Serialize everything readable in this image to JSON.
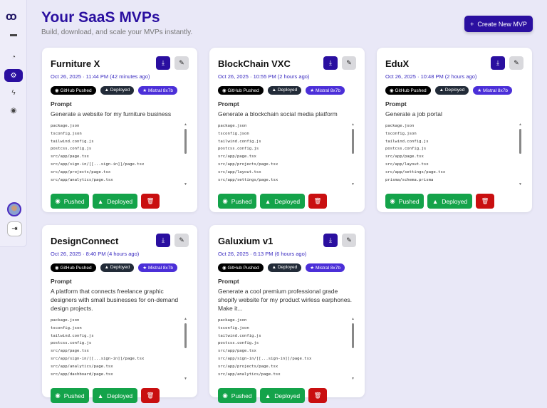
{
  "sidebar": {
    "logo": "co",
    "items": [
      {
        "name": "card",
        "icon": "▬"
      },
      {
        "name": "dashboard",
        "icon": "◔"
      },
      {
        "name": "mvps",
        "icon": "⚙"
      },
      {
        "name": "flash",
        "icon": "ϟ"
      },
      {
        "name": "gamepad",
        "icon": "◉"
      }
    ],
    "active": "mvps",
    "logout_icon": "⇥"
  },
  "header": {
    "title": "Your SaaS MVPs",
    "subtitle": "Build, download, and scale your MVPs instantly.",
    "new_button": "Create New MVP"
  },
  "badges": {
    "github": "GitHub Pushed",
    "deployed": "Deployed",
    "model": "Mistral 8x7b"
  },
  "labels": {
    "prompt": "Prompt",
    "pushed": "Pushed",
    "deployed": "Deployed"
  },
  "colors": {
    "accent": "#2a0fa0",
    "success": "#14a34a",
    "danger": "#c90f10",
    "model": "#4b2fd8"
  },
  "cards": [
    {
      "title": "Furniture X",
      "date": "Oct 26, 2025 · 11:44 PM  (42 minutes ago)",
      "prompt": "Generate a website for my furniture business",
      "files": [
        "package.json",
        "tsconfig.json",
        "tailwind.config.js",
        "postcss.config.js",
        "src/app/page.tsx",
        "src/app/sign-in/[[...sign-in]]/page.tsx",
        "src/app/projects/page.tsx",
        "src/app/analytics/page.tsx"
      ]
    },
    {
      "title": "BlockChain VXC",
      "date": "Oct 26, 2025 · 10:55 PM  (2 hours ago)",
      "prompt": "Generate a blockchain social media platform",
      "files": [
        "package.json",
        "tsconfig.json",
        "tailwind.config.js",
        "postcss.config.js",
        "src/app/page.tsx",
        "src/app/projects/page.tsx",
        "src/app/layout.tsx",
        "src/app/settings/page.tsx"
      ]
    },
    {
      "title": "EduX",
      "date": "Oct 26, 2025 · 10:48 PM  (2 hours ago)",
      "prompt": "Generate a job portal",
      "files": [
        "package.json",
        "tsconfig.json",
        "tailwind.config.js",
        "postcss.config.js",
        "src/app/page.tsx",
        "src/app/layout.tsx",
        "src/app/settings/page.tsx",
        "prisma/schema.prisma"
      ]
    },
    {
      "title": "DesignConnect",
      "date": "Oct 26, 2025 · 8:40 PM  (4 hours ago)",
      "prompt": "A platform that connects freelance graphic designers with small businesses for on-demand design projects.",
      "files": [
        "package.json",
        "tsconfig.json",
        "tailwind.config.js",
        "postcss.config.js",
        "src/app/page.tsx",
        "src/app/sign-in/[[...sign-in]]/page.tsx",
        "src/app/analytics/page.tsx",
        "src/app/dashboard/page.tsx"
      ]
    },
    {
      "title": "Galuxium v1",
      "date": "Oct 26, 2025 · 6:13 PM  (6 hours ago)",
      "prompt": "Generate a cool premium professional grade shopify website for my product wirless earphones. Make it...",
      "files": [
        "package.json",
        "tsconfig.json",
        "tailwind.config.js",
        "postcss.config.js",
        "src/app/page.tsx",
        "src/app/sign-in/[[...sign-in]]/page.tsx",
        "src/app/projects/page.tsx",
        "src/app/analytics/page.tsx"
      ]
    }
  ]
}
